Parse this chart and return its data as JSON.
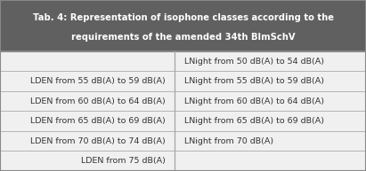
{
  "title_line1": "Tab. 4: Representation of isophone classes according to the",
  "title_line2": "requirements of the amended 34th BImSchV",
  "title_bg": "#606060",
  "title_color": "#ffffff",
  "body_bg": "#f0f0f0",
  "divider_color": "#aaaaaa",
  "border_color": "#888888",
  "text_color": "#333333",
  "left_col": [
    "",
    "LDEN from 55 dB(A) to 59 dB(A)",
    "LDEN from 60 dB(A) to 64 dB(A)",
    "LDEN from 65 dB(A) to 69 dB(A)",
    "LDEN from 70 dB(A) to 74 dB(A)",
    "LDEN from 75 dB(A)"
  ],
  "right_col": [
    "LNight from 50 dB(A) to 54 dB(A)",
    "LNight from 55 dB(A) to 59 dB(A)",
    "LNight from 60 dB(A) to 64 dB(A)",
    "LNight from 65 dB(A) to 69 dB(A)",
    "LNight from 70 dB(A)",
    ""
  ],
  "col_split": 0.478,
  "title_fontsize": 7.2,
  "body_fontsize": 6.8,
  "figsize": [
    4.11,
    1.93
  ],
  "dpi": 100
}
